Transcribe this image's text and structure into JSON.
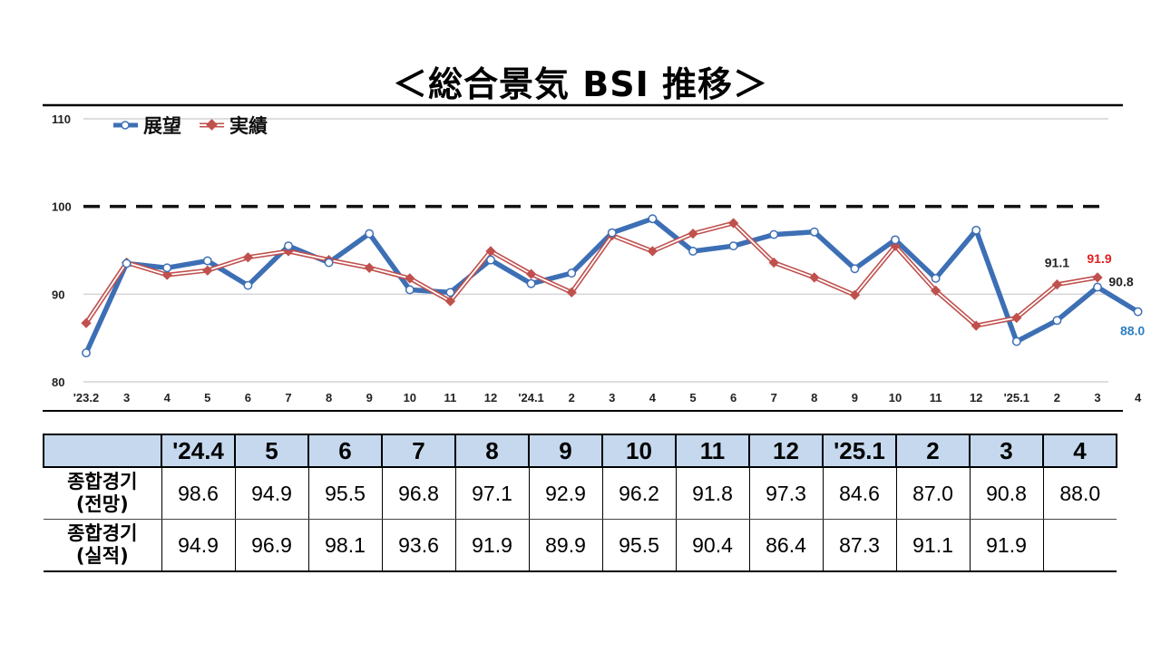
{
  "title": "＜総合景気 BSI 推移＞",
  "chart_data": {
    "type": "line",
    "title": "＜総合景気 BSI 推移＞",
    "xlabel": "",
    "ylabel": "",
    "ylim": [
      80,
      110
    ],
    "yticks": [
      "80",
      "90",
      "100",
      "110"
    ],
    "reference_line": 100,
    "grid": true,
    "legend_position": "top-left",
    "categories": [
      "'23.2",
      "3",
      "4",
      "5",
      "6",
      "7",
      "8",
      "9",
      "10",
      "11",
      "12",
      "'24.1",
      "2",
      "3",
      "4",
      "5",
      "6",
      "7",
      "8",
      "9",
      "10",
      "11",
      "12",
      "'25.1",
      "2",
      "3",
      "4"
    ],
    "series": [
      {
        "name": "展望",
        "color": "#3d6fb5",
        "values": [
          83.3,
          93.5,
          93.0,
          93.8,
          91.0,
          95.5,
          93.6,
          96.9,
          90.5,
          90.2,
          93.9,
          91.2,
          92.4,
          97.0,
          98.6,
          94.9,
          95.5,
          96.8,
          97.1,
          92.9,
          96.2,
          91.8,
          97.3,
          84.6,
          87.0,
          90.8,
          88.0
        ]
      },
      {
        "name": "実績",
        "color": "#c0504d",
        "values": [
          86.7,
          93.6,
          92.2,
          92.7,
          94.2,
          94.9,
          93.9,
          93.0,
          91.8,
          89.2,
          94.9,
          92.3,
          90.2,
          96.7,
          94.9,
          96.9,
          98.1,
          93.6,
          91.9,
          89.9,
          95.5,
          90.4,
          86.4,
          87.3,
          91.1,
          91.9,
          null
        ]
      }
    ],
    "data_labels": [
      {
        "text": "91.1",
        "series": "実績",
        "index": 24,
        "color": "#222222"
      },
      {
        "text": "91.9",
        "series": "実績",
        "index": 25,
        "color": "#e02020"
      },
      {
        "text": "90.8",
        "series": "展望",
        "index": 25,
        "color": "#222222"
      },
      {
        "text": "88.0",
        "series": "展望",
        "index": 26,
        "color": "#2e7fc0"
      }
    ]
  },
  "table": {
    "columns": [
      "",
      "'24.4",
      "5",
      "6",
      "7",
      "8",
      "9",
      "10",
      "11",
      "12",
      "'25.1",
      "2",
      "3",
      "4"
    ],
    "rows": [
      {
        "label_line1": "종합경기",
        "label_line2": "(전망)",
        "values": [
          "98.6",
          "94.9",
          "95.5",
          "96.8",
          "97.1",
          "92.9",
          "96.2",
          "91.8",
          "97.3",
          "84.6",
          "87.0",
          "90.8",
          "88.0"
        ]
      },
      {
        "label_line1": "종합경기",
        "label_line2": "(실적)",
        "values": [
          "94.9",
          "96.9",
          "98.1",
          "93.6",
          "91.9",
          "89.9",
          "95.5",
          "90.4",
          "86.4",
          "87.3",
          "91.1",
          "91.9",
          ""
        ]
      }
    ]
  }
}
